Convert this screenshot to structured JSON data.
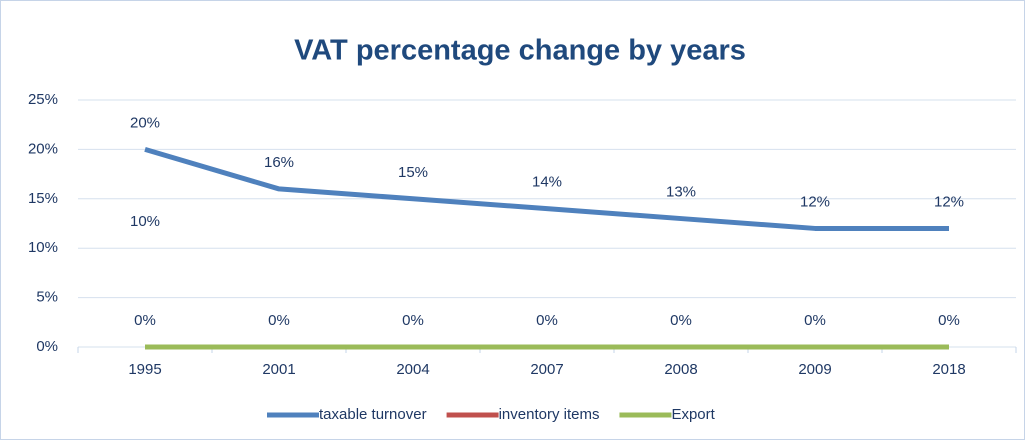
{
  "chart_data": {
    "type": "line",
    "title": "VAT percentage change by years",
    "categories": [
      "1995",
      "2001",
      "2004",
      "2007",
      "2008",
      "2009",
      "2018"
    ],
    "series": [
      {
        "name": "taxable turnover",
        "color": "#4f81bd",
        "values": [
          20,
          16,
          15,
          14,
          13,
          12,
          12
        ],
        "value_labels": [
          "20%",
          "16%",
          "15%",
          "14%",
          "13%",
          "12%",
          "12%"
        ]
      },
      {
        "name": "inventory items",
        "color": "#c0504d",
        "values": [
          10,
          null,
          null,
          null,
          null,
          null,
          null
        ],
        "value_labels": [
          "10%",
          null,
          null,
          null,
          null,
          null,
          null
        ]
      },
      {
        "name": "Export",
        "color": "#9bbb59",
        "values": [
          0,
          0,
          0,
          0,
          0,
          0,
          0
        ],
        "value_labels": [
          "0%",
          "0%",
          "0%",
          "0%",
          "0%",
          "0%",
          "0%"
        ]
      }
    ],
    "ylim": [
      0,
      25
    ],
    "yticks": [
      {
        "value": 0,
        "label": "0%"
      },
      {
        "value": 5,
        "label": "5%"
      },
      {
        "value": 10,
        "label": "10%"
      },
      {
        "value": 15,
        "label": "15%"
      },
      {
        "value": 20,
        "label": "20%"
      },
      {
        "value": 25,
        "label": "25%"
      }
    ],
    "grid": true,
    "legend": "bottom"
  }
}
